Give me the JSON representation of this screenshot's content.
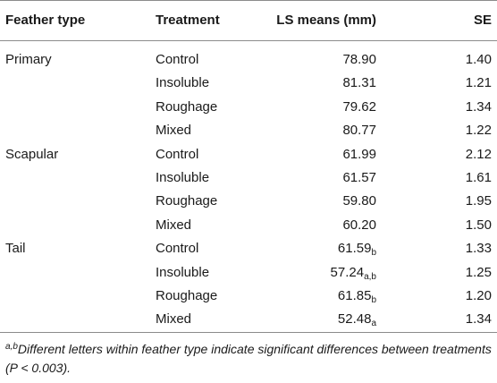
{
  "table": {
    "headers": {
      "feather_type": "Feather type",
      "treatment": "Treatment",
      "ls_means": "LS means (mm)",
      "se": "SE"
    },
    "rows": [
      {
        "feather_type": "Primary",
        "treatment": "Control",
        "ls_mean": "78.90",
        "ls_sub": "",
        "se": "1.40"
      },
      {
        "feather_type": "",
        "treatment": "Insoluble",
        "ls_mean": "81.31",
        "ls_sub": "",
        "se": "1.21"
      },
      {
        "feather_type": "",
        "treatment": "Roughage",
        "ls_mean": "79.62",
        "ls_sub": "",
        "se": "1.34"
      },
      {
        "feather_type": "",
        "treatment": "Mixed",
        "ls_mean": "80.77",
        "ls_sub": "",
        "se": "1.22"
      },
      {
        "feather_type": "Scapular",
        "treatment": "Control",
        "ls_mean": "61.99",
        "ls_sub": "",
        "se": "2.12"
      },
      {
        "feather_type": "",
        "treatment": "Insoluble",
        "ls_mean": "61.57",
        "ls_sub": "",
        "se": "1.61"
      },
      {
        "feather_type": "",
        "treatment": "Roughage",
        "ls_mean": "59.80",
        "ls_sub": "",
        "se": "1.95"
      },
      {
        "feather_type": "",
        "treatment": "Mixed",
        "ls_mean": "60.20",
        "ls_sub": "",
        "se": "1.50"
      },
      {
        "feather_type": "Tail",
        "treatment": "Control",
        "ls_mean": "61.59",
        "ls_sub": "b",
        "se": "1.33"
      },
      {
        "feather_type": "",
        "treatment": "Insoluble",
        "ls_mean": "57.24",
        "ls_sub": "a,b",
        "se": "1.25"
      },
      {
        "feather_type": "",
        "treatment": "Roughage",
        "ls_mean": "61.85",
        "ls_sub": "b",
        "se": "1.20"
      },
      {
        "feather_type": "",
        "treatment": "Mixed",
        "ls_mean": "52.48",
        "ls_sub": "a",
        "se": "1.34"
      }
    ]
  },
  "footnote": {
    "superscript": "a,b",
    "text": "Different letters within feather type indicate significant differences between treatments (P < 0.003)."
  }
}
